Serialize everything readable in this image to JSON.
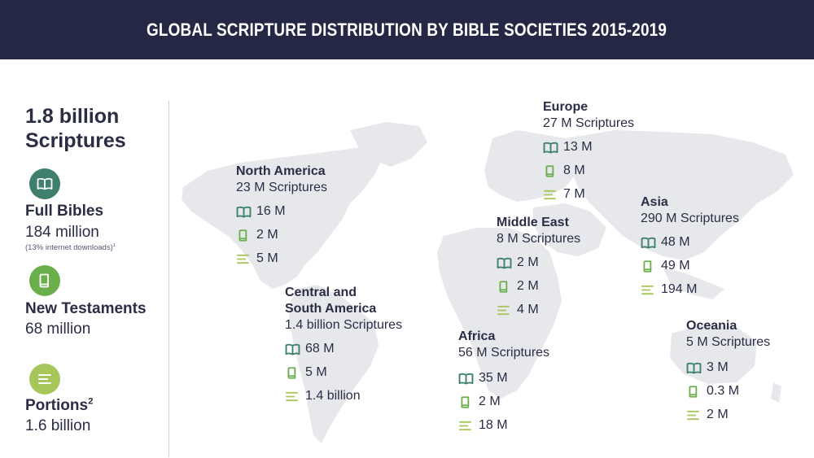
{
  "header": {
    "title": "GLOBAL SCRIPTURE DISTRIBUTION BY BIBLE SOCIETIES 2015-2019"
  },
  "sidebar": {
    "total": "1.8 billion Scriptures",
    "full_bibles": {
      "title": "Full Bibles",
      "value": "184 million",
      "note": "(13% internet downloads)",
      "note_sup": "1"
    },
    "new_testaments": {
      "title": "New Testaments",
      "value": "68 million"
    },
    "portions": {
      "title": "Portions",
      "title_sup": "2",
      "value": "1.6 billion"
    }
  },
  "colors": {
    "header_bg": "#252844",
    "bible": "#3e7f6d",
    "new_testament": "#6bae4c",
    "portions": "#a6c65a",
    "map": "#e6e8ec",
    "text": "#2b2d45"
  },
  "icons": {
    "bible": "open-book-icon",
    "new_testament": "closed-book-icon",
    "portions": "lines-icon"
  },
  "regions": [
    {
      "id": "north-america",
      "name": "North America",
      "total": "23 M Scriptures",
      "bibles": "16 M",
      "nt": "2 M",
      "portions": "5 M"
    },
    {
      "id": "central-south-america",
      "name": "Central and South America",
      "name_line1": "Central and",
      "name_line2": "South America",
      "total": "1.4 billion Scriptures",
      "bibles": "68 M",
      "nt": "5 M",
      "portions": "1.4 billion"
    },
    {
      "id": "europe",
      "name": "Europe",
      "total": "27 M Scriptures",
      "bibles": "13 M",
      "nt": "8 M",
      "portions": "7 M"
    },
    {
      "id": "middle-east",
      "name": "Middle East",
      "total": "8 M Scriptures",
      "bibles": "2 M",
      "nt": "2 M",
      "portions": "4 M"
    },
    {
      "id": "africa",
      "name": "Africa",
      "total": "56 M Scriptures",
      "bibles": "35 M",
      "nt": "2 M",
      "portions": "18 M"
    },
    {
      "id": "asia",
      "name": "Asia",
      "total": "290 M Scriptures",
      "bibles": "48 M",
      "nt": "49 M",
      "portions": "194 M"
    },
    {
      "id": "oceania",
      "name": "Oceania",
      "total": "5 M Scriptures",
      "bibles": "3 M",
      "nt": "0.3 M",
      "portions": "2 M"
    }
  ]
}
